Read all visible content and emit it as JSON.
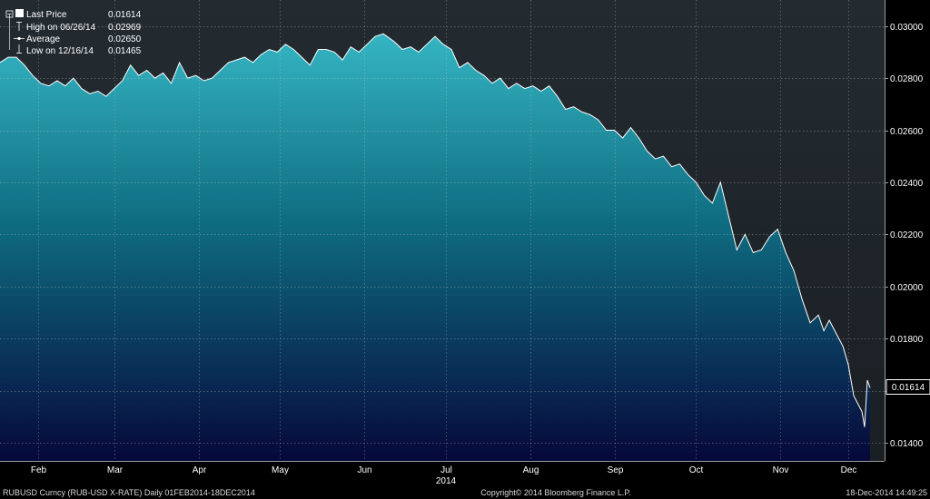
{
  "chart_data": {
    "type": "area",
    "title": "",
    "xlabel": "",
    "ylabel": "",
    "x_range": [
      "2014-02-01",
      "2014-12-18"
    ],
    "ylim": [
      0.0133,
      0.031
    ],
    "y_ticks": [
      "0.01400",
      "0.01600",
      "0.01800",
      "0.02000",
      "0.02200",
      "0.02400",
      "0.02600",
      "0.02800",
      "0.03000"
    ],
    "y_tick_values": [
      0.014,
      0.016,
      0.018,
      0.02,
      0.022,
      0.024,
      0.026,
      0.028,
      0.03
    ],
    "x_ticks": [
      {
        "label": "Feb",
        "date": "2014-02-15"
      },
      {
        "label": "Mar",
        "date": "2014-03-15"
      },
      {
        "label": "Apr",
        "date": "2014-04-15"
      },
      {
        "label": "May",
        "date": "2014-05-15"
      },
      {
        "label": "Jun",
        "date": "2014-06-15"
      },
      {
        "label": "Jul",
        "date": "2014-07-15"
      },
      {
        "label": "Aug",
        "date": "2014-08-15"
      },
      {
        "label": "Sep",
        "date": "2014-09-15"
      },
      {
        "label": "Oct",
        "date": "2014-10-15"
      },
      {
        "label": "Nov",
        "date": "2014-11-15"
      },
      {
        "label": "Dec",
        "date": "2014-12-10"
      }
    ],
    "year_label": {
      "label": "2014",
      "date": "2014-07-15"
    },
    "grid": true,
    "legend_position": "top-left",
    "legend": [
      {
        "label": "Last Price",
        "value": "0.01614",
        "marker": "square"
      },
      {
        "label": "High on 06/26/14",
        "value": "0.02969",
        "marker": "high"
      },
      {
        "label": "Average",
        "value": "0.02650",
        "marker": "average"
      },
      {
        "label": "Low on 12/16/14",
        "value": "0.01465",
        "marker": "low"
      }
    ],
    "last_price_label": "0.01614",
    "last_price_value": 0.01614,
    "series": [
      {
        "x": [
          "2014-02-01",
          "2014-02-04",
          "2014-02-07",
          "2014-02-10",
          "2014-02-13",
          "2014-02-16",
          "2014-02-19",
          "2014-02-22",
          "2014-02-25",
          "2014-02-28",
          "2014-03-03",
          "2014-03-06",
          "2014-03-09",
          "2014-03-12",
          "2014-03-15",
          "2014-03-18",
          "2014-03-21",
          "2014-03-24",
          "2014-03-27",
          "2014-03-30",
          "2014-04-02",
          "2014-04-05",
          "2014-04-08",
          "2014-04-11",
          "2014-04-14",
          "2014-04-17",
          "2014-04-20",
          "2014-04-23",
          "2014-04-26",
          "2014-04-29",
          "2014-05-02",
          "2014-05-05",
          "2014-05-08",
          "2014-05-11",
          "2014-05-14",
          "2014-05-17",
          "2014-05-20",
          "2014-05-23",
          "2014-05-26",
          "2014-05-29",
          "2014-06-01",
          "2014-06-04",
          "2014-06-07",
          "2014-06-10",
          "2014-06-13",
          "2014-06-16",
          "2014-06-19",
          "2014-06-22",
          "2014-06-26",
          "2014-06-29",
          "2014-07-02",
          "2014-07-05",
          "2014-07-08",
          "2014-07-11",
          "2014-07-14",
          "2014-07-17",
          "2014-07-20",
          "2014-07-23",
          "2014-07-26",
          "2014-07-29",
          "2014-08-01",
          "2014-08-04",
          "2014-08-07",
          "2014-08-10",
          "2014-08-13",
          "2014-08-16",
          "2014-08-19",
          "2014-08-22",
          "2014-08-25",
          "2014-08-28",
          "2014-08-31",
          "2014-09-03",
          "2014-09-06",
          "2014-09-09",
          "2014-09-12",
          "2014-09-15",
          "2014-09-18",
          "2014-09-21",
          "2014-09-24",
          "2014-09-27",
          "2014-09-30",
          "2014-10-03",
          "2014-10-06",
          "2014-10-09",
          "2014-10-12",
          "2014-10-15",
          "2014-10-18",
          "2014-10-21",
          "2014-10-24",
          "2014-10-27",
          "2014-10-30",
          "2014-11-02",
          "2014-11-05",
          "2014-11-08",
          "2014-11-11",
          "2014-11-14",
          "2014-11-17",
          "2014-11-20",
          "2014-11-23",
          "2014-11-26",
          "2014-11-29",
          "2014-12-01",
          "2014-12-03",
          "2014-12-05",
          "2014-12-08",
          "2014-12-10",
          "2014-12-12",
          "2014-12-15",
          "2014-12-16",
          "2014-12-17",
          "2014-12-18"
        ],
        "y": [
          0.0286,
          0.0288,
          0.0288,
          0.0285,
          0.0281,
          0.0278,
          0.0277,
          0.0279,
          0.0277,
          0.028,
          0.0276,
          0.0274,
          0.0275,
          0.0273,
          0.0276,
          0.0279,
          0.0285,
          0.0281,
          0.0283,
          0.028,
          0.0282,
          0.0278,
          0.0286,
          0.028,
          0.0281,
          0.0279,
          0.028,
          0.0283,
          0.0286,
          0.0287,
          0.0288,
          0.0286,
          0.0289,
          0.0291,
          0.029,
          0.0293,
          0.0291,
          0.0288,
          0.0285,
          0.0291,
          0.0291,
          0.029,
          0.0287,
          0.0292,
          0.029,
          0.0293,
          0.0296,
          0.0297,
          0.0294,
          0.0291,
          0.0292,
          0.029,
          0.0293,
          0.0296,
          0.0293,
          0.0291,
          0.0284,
          0.0286,
          0.0283,
          0.0281,
          0.0278,
          0.028,
          0.0276,
          0.0278,
          0.0276,
          0.0277,
          0.0275,
          0.0277,
          0.0273,
          0.0268,
          0.0269,
          0.0267,
          0.0266,
          0.0264,
          0.026,
          0.026,
          0.0257,
          0.0261,
          0.0257,
          0.0252,
          0.0249,
          0.025,
          0.0246,
          0.0247,
          0.0243,
          0.024,
          0.0235,
          0.0232,
          0.024,
          0.0227,
          0.0214,
          0.022,
          0.0213,
          0.0214,
          0.0219,
          0.0222,
          0.0213,
          0.0206,
          0.0195,
          0.0186,
          0.0189,
          0.0183,
          0.0187,
          0.0183,
          0.0177,
          0.017,
          0.0158,
          0.0152,
          0.0146,
          0.0164,
          0.0161
        ]
      }
    ],
    "footer": {
      "left": "RUBUSD Curncy (RUB-USD X-RATE)  Daily 01FEB2014-18DEC2014",
      "center": "Copyright© 2014 Bloomberg Finance L.P.",
      "right": "18-Dec-2014 14:49:25"
    }
  },
  "colors": {
    "background": "#000000",
    "plot_top": "#232b31",
    "area_top": "#35b5c2",
    "area_mid": "#0e6b80",
    "area_bottom": "#06083a",
    "line": "#ffffff",
    "grid": "#c8c8c8"
  }
}
